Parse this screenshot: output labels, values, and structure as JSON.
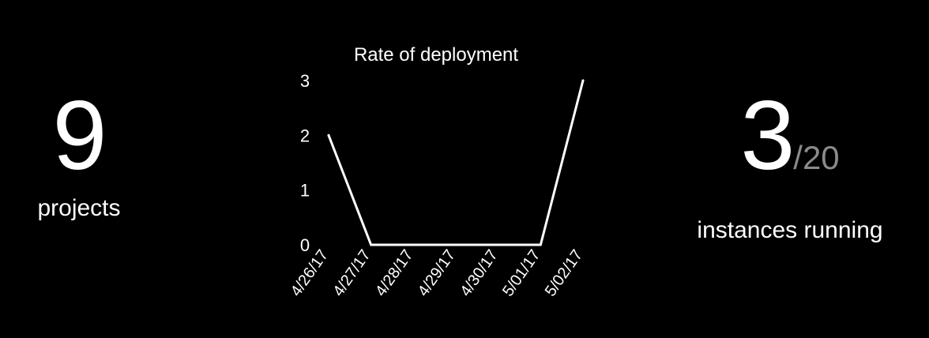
{
  "stats": {
    "projects": {
      "value": "9",
      "label": "projects"
    },
    "instances": {
      "value": "3",
      "total": "/20",
      "label": "instances running"
    }
  },
  "colors": {
    "background": "#000000",
    "foreground": "#ffffff",
    "muted": "#8a8a8a"
  },
  "chart_data": {
    "type": "line",
    "title": "Rate of deployment",
    "xlabel": "",
    "ylabel": "",
    "categories": [
      "4/26/17",
      "4/27/17",
      "4/28/17",
      "4/29/17",
      "4/30/17",
      "5/01/17",
      "5/02/17"
    ],
    "values": [
      2,
      0,
      0,
      0,
      0,
      0,
      3
    ],
    "ylim": [
      0,
      3
    ],
    "yticks": [
      0,
      1,
      2,
      3
    ],
    "grid": false,
    "legend": "none"
  }
}
